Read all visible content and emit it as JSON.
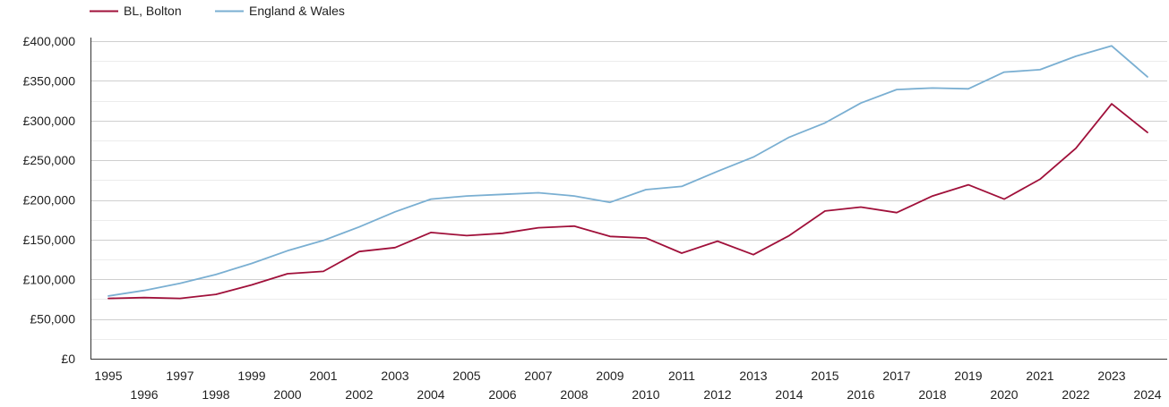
{
  "colors": {
    "bolton": "#a0103a",
    "england_wales": "#7aafd2"
  },
  "chart_data": {
    "type": "line",
    "title": "",
    "xlabel": "",
    "ylabel": "",
    "x": [
      1995,
      1996,
      1997,
      1998,
      1999,
      2000,
      2001,
      2002,
      2003,
      2004,
      2005,
      2006,
      2007,
      2008,
      2009,
      2010,
      2011,
      2012,
      2013,
      2014,
      2015,
      2016,
      2017,
      2018,
      2019,
      2020,
      2021,
      2022,
      2023,
      2024
    ],
    "x_tick_labels": [
      "1995",
      "1996",
      "1997",
      "1998",
      "1999",
      "2000",
      "2001",
      "2002",
      "2003",
      "2004",
      "2005",
      "2006",
      "2007",
      "2008",
      "2009",
      "2010",
      "2011",
      "2012",
      "2013",
      "2014",
      "2015",
      "2016",
      "2017",
      "2018",
      "2019",
      "2020",
      "2021",
      "2022",
      "2023",
      "2024"
    ],
    "ylim": [
      0,
      400000
    ],
    "y_ticks": [
      0,
      50000,
      100000,
      150000,
      200000,
      250000,
      300000,
      350000,
      400000
    ],
    "y_tick_labels": [
      "£0",
      "£50,000",
      "£100,000",
      "£150,000",
      "£200,000",
      "£250,000",
      "£300,000",
      "£350,000",
      "£400,000"
    ],
    "grid": true,
    "legend_position": "top-left",
    "series": [
      {
        "name": "BL, Bolton",
        "color": "#a0103a",
        "values": [
          76000,
          77000,
          76000,
          81000,
          93000,
          107000,
          110000,
          135000,
          140000,
          159000,
          155000,
          158000,
          165000,
          167000,
          154000,
          152000,
          133000,
          148000,
          131000,
          155000,
          186000,
          191000,
          184000,
          205000,
          219000,
          201000,
          226000,
          265000,
          321000,
          285000
        ]
      },
      {
        "name": "England & Wales",
        "color": "#7aafd2",
        "values": [
          79000,
          86000,
          95000,
          106000,
          120000,
          136000,
          149000,
          166000,
          185000,
          201000,
          205000,
          207000,
          209000,
          205000,
          197000,
          213000,
          217000,
          236000,
          254000,
          279000,
          297000,
          322000,
          339000,
          341000,
          340000,
          361000,
          364000,
          381000,
          394000,
          355000
        ]
      }
    ]
  }
}
